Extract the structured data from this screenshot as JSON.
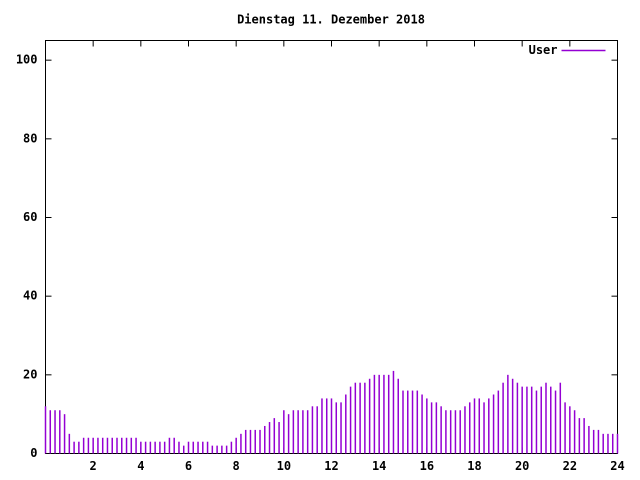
{
  "chart_data": {
    "type": "impulse",
    "title": "Dienstag 11. Dezember 2018",
    "x": [
      0,
      0.2,
      0.4,
      0.6,
      0.8,
      1,
      1.2,
      1.4,
      1.6,
      1.8,
      2,
      2.2,
      2.4,
      2.6,
      2.8,
      3,
      3.2,
      3.4,
      3.6,
      3.8,
      4,
      4.2,
      4.4,
      4.6,
      4.8,
      5,
      5.2,
      5.4,
      5.6,
      5.8,
      6,
      6.2,
      6.4,
      6.6,
      6.8,
      7,
      7.2,
      7.4,
      7.6,
      7.8,
      8,
      8.2,
      8.4,
      8.6,
      8.8,
      9,
      9.2,
      9.4,
      9.6,
      9.8,
      10,
      10.2,
      10.4,
      10.6,
      10.8,
      11,
      11.2,
      11.4,
      11.6,
      11.8,
      12,
      12.2,
      12.4,
      12.6,
      12.8,
      13,
      13.2,
      13.4,
      13.6,
      13.8,
      14,
      14.2,
      14.4,
      14.6,
      14.8,
      15,
      15.2,
      15.4,
      15.6,
      15.8,
      16,
      16.2,
      16.4,
      16.6,
      16.8,
      17,
      17.2,
      17.4,
      17.6,
      17.8,
      18,
      18.2,
      18.4,
      18.6,
      18.8,
      19,
      19.2,
      19.4,
      19.6,
      19.8,
      20,
      20.2,
      20.4,
      20.6,
      20.8,
      21,
      21.2,
      21.4,
      21.6,
      21.8,
      22,
      22.2,
      22.4,
      22.6,
      22.8,
      23,
      23.2,
      23.4,
      23.6,
      23.8,
      24
    ],
    "series": [
      {
        "name": "User",
        "color": "#9400d3",
        "values": [
          12,
          11,
          11,
          11,
          10,
          5,
          3,
          3,
          4,
          4,
          4,
          4,
          4,
          4,
          4,
          4,
          4,
          4,
          4,
          4,
          3,
          3,
          3,
          3,
          3,
          3,
          4,
          4,
          3,
          2,
          3,
          3,
          3,
          3,
          3,
          2,
          2,
          2,
          2,
          3,
          4,
          5,
          6,
          6,
          6,
          6,
          7,
          8,
          9,
          8,
          11,
          10,
          11,
          11,
          11,
          11,
          12,
          12,
          14,
          14,
          14,
          13,
          13,
          15,
          17,
          18,
          18,
          18,
          19,
          20,
          20,
          20,
          20,
          21,
          19,
          16,
          16,
          16,
          16,
          15,
          14,
          13,
          13,
          12,
          11,
          11,
          11,
          11,
          12,
          13,
          14,
          14,
          13,
          14,
          15,
          16,
          18,
          20,
          19,
          18,
          17,
          17,
          17,
          16,
          17,
          18,
          17,
          16,
          18,
          13,
          12,
          11,
          9,
          9,
          7,
          6,
          6,
          5,
          5,
          5,
          5
        ]
      }
    ],
    "xlim": [
      0,
      24
    ],
    "xticks": [
      2,
      4,
      6,
      8,
      10,
      12,
      14,
      16,
      18,
      20,
      22,
      24
    ],
    "ylim": [
      0,
      105
    ],
    "yticks": [
      0,
      20,
      40,
      60,
      80,
      100
    ],
    "legend": "top-right"
  }
}
